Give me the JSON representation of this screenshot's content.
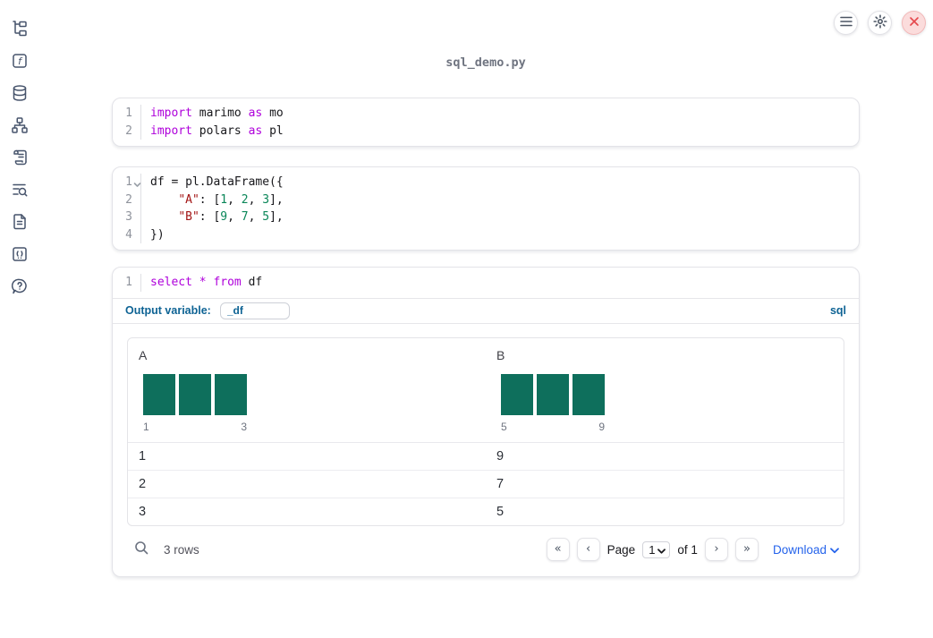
{
  "window": {
    "title": "sql_demo.py",
    "controls": [
      {
        "name": "menu",
        "icon": "hamburger-icon"
      },
      {
        "name": "settings",
        "icon": "gear-icon"
      },
      {
        "name": "close",
        "icon": "close-x-icon"
      }
    ]
  },
  "sidebar": {
    "items": [
      {
        "name": "file-explorer",
        "icon": "file-tree-icon"
      },
      {
        "name": "variables",
        "icon": "function-icon"
      },
      {
        "name": "datasources",
        "icon": "database-icon"
      },
      {
        "name": "dependency-graph",
        "icon": "workflow-icon"
      },
      {
        "name": "logs",
        "icon": "scroll-icon"
      },
      {
        "name": "scratchpad",
        "icon": "list-search-icon"
      },
      {
        "name": "documentation",
        "icon": "document-icon"
      },
      {
        "name": "snippets",
        "icon": "code-snippet-icon"
      },
      {
        "name": "help",
        "icon": "help-bubble-icon"
      }
    ]
  },
  "colors": {
    "accent_blue": "#0e6394",
    "link_blue": "#2563eb",
    "keyword": "#af00db",
    "string": "#a31515",
    "number": "#098658",
    "bar_teal": "#0e6f5c",
    "close_red": "#e5484d"
  },
  "code_cells": [
    {
      "name": "imports-cell",
      "lines": [
        {
          "num": "1",
          "tokens": [
            {
              "c": "kw",
              "t": "import"
            },
            {
              "c": "pl",
              "t": " marimo "
            },
            {
              "c": "kw",
              "t": "as"
            },
            {
              "c": "pl",
              "t": " mo"
            }
          ]
        },
        {
          "num": "2",
          "tokens": [
            {
              "c": "kw",
              "t": "import"
            },
            {
              "c": "pl",
              "t": " polars "
            },
            {
              "c": "kw",
              "t": "as"
            },
            {
              "c": "pl",
              "t": " pl"
            }
          ]
        }
      ]
    },
    {
      "name": "dataframe-cell",
      "lines": [
        {
          "num": "1",
          "fold": true,
          "tokens": [
            {
              "c": "pl",
              "t": "df = pl.DataFrame({"
            }
          ]
        },
        {
          "num": "2",
          "tokens": [
            {
              "c": "pl",
              "t": "    "
            },
            {
              "c": "str",
              "t": "\"A\""
            },
            {
              "c": "pl",
              "t": ": ["
            },
            {
              "c": "num",
              "t": "1"
            },
            {
              "c": "pl",
              "t": ", "
            },
            {
              "c": "num",
              "t": "2"
            },
            {
              "c": "pl",
              "t": ", "
            },
            {
              "c": "num",
              "t": "3"
            },
            {
              "c": "pl",
              "t": "],"
            }
          ]
        },
        {
          "num": "3",
          "tokens": [
            {
              "c": "pl",
              "t": "    "
            },
            {
              "c": "str",
              "t": "\"B\""
            },
            {
              "c": "pl",
              "t": ": ["
            },
            {
              "c": "num",
              "t": "9"
            },
            {
              "c": "pl",
              "t": ", "
            },
            {
              "c": "num",
              "t": "7"
            },
            {
              "c": "pl",
              "t": ", "
            },
            {
              "c": "num",
              "t": "5"
            },
            {
              "c": "pl",
              "t": "],"
            }
          ]
        },
        {
          "num": "4",
          "tokens": [
            {
              "c": "pl",
              "t": "})"
            }
          ]
        }
      ]
    },
    {
      "name": "sql-cell",
      "lines": [
        {
          "num": "1",
          "tokens": [
            {
              "c": "kw",
              "t": "select"
            },
            {
              "c": "pl",
              "t": " "
            },
            {
              "c": "kw",
              "t": "*"
            },
            {
              "c": "pl",
              "t": " "
            },
            {
              "c": "kw",
              "t": "from"
            },
            {
              "c": "pl",
              "t": " df"
            }
          ]
        }
      ]
    }
  ],
  "sql_cell": {
    "output_variable_label": "Output variable:",
    "output_variable_value": "_df",
    "language_badge": "sql"
  },
  "table": {
    "columns": [
      {
        "name": "A",
        "hist": {
          "bar_counts": [
            1,
            1,
            1
          ],
          "min_label": "1",
          "max_label": "3"
        }
      },
      {
        "name": "B",
        "hist": {
          "bar_counts": [
            1,
            1,
            1
          ],
          "min_label": "5",
          "max_label": "9"
        }
      }
    ],
    "rows": [
      [
        "1",
        "9"
      ],
      [
        "2",
        "7"
      ],
      [
        "3",
        "5"
      ]
    ],
    "footer": {
      "row_count_text": "3 rows",
      "page_label": "Page",
      "page_value": "1",
      "of_text": "of 1",
      "download_label": "Download",
      "pager_icons": {
        "first": "«",
        "prev": "‹",
        "next": "›",
        "last": "»"
      }
    }
  }
}
